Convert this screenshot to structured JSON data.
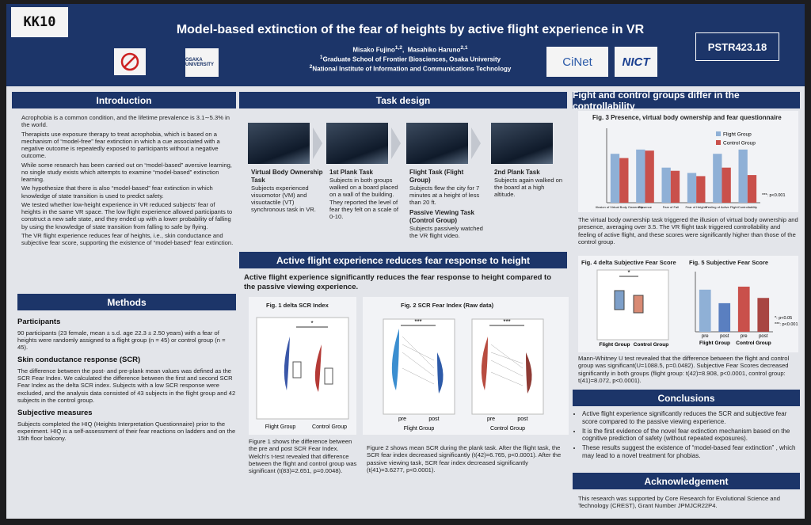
{
  "header": {
    "id": "KK10",
    "title": "Model-based extinction of the fear of heights by active flight experience in VR",
    "authors": [
      {
        "name": "Misako Fujino",
        "aff": "1,2"
      },
      {
        "name": "Masahiko Haruno",
        "aff": "2,1"
      }
    ],
    "affiliations": [
      {
        "num": "1",
        "text": "Graduate School of Frontier Biosciences, Osaka University"
      },
      {
        "num": "2",
        "text": "National Institute of Information and Communications Technology"
      }
    ],
    "poster_number": "PSTR423.18",
    "logos": [
      "OSAKA UNIVERSITY",
      "CiNet",
      "NICT"
    ]
  },
  "introduction": {
    "heading": "Introduction",
    "bullets": [
      "Acrophobia is a common condition, and the lifetime prevalence is 3.1∼5.3% in the world.",
      "Therapists use exposure therapy to treat acrophobia, which is based on a mechanism of “model-free” fear extinction in which a cue associated with a negative outcome is repeatedly exposed to participants without a negative outcome.",
      "While some research has been carried out on “model-based” aversive learning, no single study exists which attempts to examine “model-based” extinction learning.",
      "We hypothesize that there is also “model-based” fear extinction in which knowledge of state transition is used to predict safety.",
      "We tested whether low-height experience in VR reduced subjects' fear of heights in the same VR space. The low flight experience allowed participants to construct a new safe state, and they ended up with a lower probability of falling by using the knowledge of state transition from falling to safe by flying.",
      "The VR flight experience reduces fear of heights, i.e., skin conductance and subjective fear score, supporting the existence of “model-based” fear extinction."
    ]
  },
  "methods": {
    "heading": "Methods",
    "subsections": [
      {
        "title": "Participants",
        "text": "90 participants (23 female, mean ± s.d. age 22.3 ± 2.50 years) with a fear of heights were randomly assigned to a flight group (n = 45) or control group (n = 45)."
      },
      {
        "title": "Skin conductance response (SCR)",
        "text": "The difference between the post- and pre-plank mean values was defined as the SCR Fear Index. We calculated the difference between the first and second SCR Fear Index as the delta SCR index. Subjects with a low SCR response were excluded, and the analysis data consisted of 43 subjects in the flight group and 42 subjects in the control group."
      },
      {
        "title": "Subjective measures",
        "text": "Subjects completed the HIQ (Heights Interpretation Questionnaire) prior to the experiment. HIQ is a self-assessment of their fear reactions on ladders and on the 15th floor balcony."
      }
    ]
  },
  "task_design": {
    "heading": "Task design",
    "steps": [
      {
        "title": "Virtual Body Ownership Task",
        "text": "Subjects experienced visuomotor (VM) and visuotactile (VT) synchronous task in VR."
      },
      {
        "title": "1st Plank Task",
        "text": "Subjects in both groups walked on a board placed on a wall of the building. They reported the level of fear they felt on a scale of 0-10."
      },
      {
        "title": "Flight Task (Flight Group)",
        "text": "Subjects flew the city for 7 minutes at a height of less than 20 ft.",
        "title2": "Passive Viewing Task (Control Group)",
        "text2": "Subjects passively watched the VR flight video."
      },
      {
        "title": "2nd Plank Task",
        "text": "Subjects again walked on the board at a high altitude."
      }
    ]
  },
  "active_flight": {
    "heading": "Active flight experience reduces fear response to height",
    "subheading": "Active flight experience significantly reduces the fear response to height compared to the passive viewing experience.",
    "fig1": {
      "title": "Fig. 1 delta SCR Index",
      "groups": [
        "Flight Group",
        "Control Group"
      ],
      "sig": "*",
      "caption": "Figure 1 shows the difference between the pre and post SCR Fear Index. Welch's t-test revealed that difference between the flight and control group was significant (t(83)=2.651, p=0.0048)."
    },
    "fig2": {
      "title": "Fig. 2  SCR Fear Index (Raw data)",
      "timepoints": [
        "pre",
        "post"
      ],
      "groups": [
        "Flight Group",
        "Control Group"
      ],
      "sig": "***",
      "caption": "Figure 2 shows mean SCR during the plank task. After the flight task, the SCR fear index decreased significantly (t(42)=6.765, p<0.0001). After the passive viewing task, SCR fear index decreased significantly (t(41)=3.6277, p<0.0001)."
    }
  },
  "controllability": {
    "heading": "Fight and control groups differ in the controllability",
    "fig3_text": "The virtual body ownership task triggered the illusion of virtual body ownership and presence, averaging over 3.5. The VR flight task triggered controllability and feeling of active flight, and these scores were significantly higher than those of the control group.",
    "fig4": {
      "title": "Fig. 4 delta Subjective Fear Score",
      "groups": [
        "Flight Group",
        "Control Group"
      ],
      "sig": "*"
    },
    "fig45_text": "Mann-Whitney U test revealed that the difference between the flight and control group was significant(U=1088.5, p=0.0482). Subjective Fear Scores decreased significantly in both groups (flight group: t(42)=8.908, p<0.0001, control group: t(41)=8.072, p<0.0001)."
  },
  "conclusions": {
    "heading": "Conclusions",
    "bullets": [
      "Active flight experience significantly reduces the SCR and subjective fear score compared to the passive viewing experience.",
      "It is the first evidence of the novel fear extinction mechanism based on the cognitive prediction of safety (without repeated exposures).",
      "These results suggest the existence of “model-based fear extinction” , which may lead to a novel treatment for phobias."
    ]
  },
  "acknowledgement": {
    "heading": "Acknowledgement",
    "text": "This research was supported by Core Research for Evolutional Science and Technology (CREST), Grant Number JPMJCR22P4."
  },
  "chart_data": [
    {
      "type": "bar",
      "title": "Fig. 3  Presence, virtual body ownership and fear questionnaire",
      "categories": [
        "Illusion of Virtual Body Ownership",
        "Presence",
        "Fear of Fall",
        "Fear of Heights",
        "Feeling of Active Flight",
        "Controllability"
      ],
      "series": [
        {
          "name": "Flight Group",
          "color": "#8fb0d6",
          "values": [
            4.6,
            5.0,
            3.3,
            2.8,
            4.6,
            5.0
          ]
        },
        {
          "name": "Control Group",
          "color": "#c9504b",
          "values": [
            4.2,
            4.9,
            3.0,
            2.5,
            3.3,
            2.6
          ]
        }
      ],
      "ylim": [
        0,
        7
      ],
      "legend": "upper right",
      "annotation": "***: p<0.001"
    },
    {
      "type": "bar",
      "title": "Fig. 5 Subjective Fear Score",
      "categories": [
        "pre",
        "post",
        "pre",
        "post"
      ],
      "groups": [
        "Flight Group",
        "Control Group"
      ],
      "values": [
        5.6,
        3.8,
        6.0,
        4.5
      ],
      "colors": [
        "#8fb0d6",
        "#5a7fc0",
        "#c9504b",
        "#a84542"
      ],
      "ylim": [
        0,
        8
      ],
      "annotations": [
        "*: p<0.05",
        "***: p<0.001"
      ]
    }
  ]
}
